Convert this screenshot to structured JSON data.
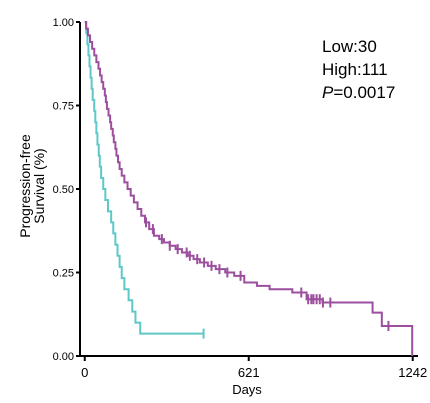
{
  "chart_data": {
    "type": "line",
    "subtype": "kaplan-meier-step",
    "xlabel": "Days",
    "ylabel_line1": "Progression-free",
    "ylabel_line2": "Survival (%)",
    "xlim": [
      -18,
      1262
    ],
    "ylim": [
      0,
      1.0
    ],
    "x_ticks": [
      0,
      621,
      1242
    ],
    "x_tick_labels": [
      "0",
      "621",
      "1242"
    ],
    "y_ticks": [
      0,
      0.25,
      0.5,
      0.75,
      1.0
    ],
    "y_tick_labels": [
      "0.00",
      "0.25",
      "0.50",
      "0.75",
      "1.00"
    ],
    "legend": {
      "line1": "Low:30",
      "line2": "High:111",
      "p_symbol": "P",
      "p_value": "=0.0017",
      "placement": "top-right"
    },
    "colors": {
      "low": "#5ec8c8",
      "high": "#9b4f9e",
      "axis": "#000000"
    },
    "series": [
      {
        "key": "low",
        "steps": [
          [
            0,
            1.0
          ],
          [
            6,
            0.967
          ],
          [
            10,
            0.933
          ],
          [
            14,
            0.9
          ],
          [
            18,
            0.867
          ],
          [
            22,
            0.833
          ],
          [
            26,
            0.8
          ],
          [
            30,
            0.767
          ],
          [
            36,
            0.733
          ],
          [
            40,
            0.7
          ],
          [
            44,
            0.667
          ],
          [
            48,
            0.633
          ],
          [
            53,
            0.6
          ],
          [
            57,
            0.567
          ],
          [
            62,
            0.533
          ],
          [
            70,
            0.5
          ],
          [
            78,
            0.467
          ],
          [
            88,
            0.433
          ],
          [
            100,
            0.4
          ],
          [
            108,
            0.367
          ],
          [
            116,
            0.333
          ],
          [
            124,
            0.3
          ],
          [
            132,
            0.267
          ],
          [
            140,
            0.233
          ],
          [
            150,
            0.2
          ],
          [
            166,
            0.167
          ],
          [
            180,
            0.133
          ],
          [
            192,
            0.1
          ],
          [
            210,
            0.067
          ],
          [
            450,
            0.067
          ]
        ],
        "censor_times": [
          450
        ]
      },
      {
        "key": "high",
        "steps": [
          [
            0,
            1.0
          ],
          [
            5,
            0.98
          ],
          [
            12,
            0.96
          ],
          [
            20,
            0.94
          ],
          [
            28,
            0.92
          ],
          [
            36,
            0.9
          ],
          [
            44,
            0.88
          ],
          [
            52,
            0.86
          ],
          [
            58,
            0.84
          ],
          [
            64,
            0.82
          ],
          [
            70,
            0.8
          ],
          [
            76,
            0.78
          ],
          [
            80,
            0.76
          ],
          [
            84,
            0.74
          ],
          [
            90,
            0.72
          ],
          [
            96,
            0.7
          ],
          [
            100,
            0.68
          ],
          [
            106,
            0.66
          ],
          [
            110,
            0.64
          ],
          [
            116,
            0.62
          ],
          [
            120,
            0.6
          ],
          [
            126,
            0.58
          ],
          [
            132,
            0.56
          ],
          [
            140,
            0.54
          ],
          [
            150,
            0.52
          ],
          [
            162,
            0.5
          ],
          [
            174,
            0.48
          ],
          [
            186,
            0.46
          ],
          [
            200,
            0.44
          ],
          [
            214,
            0.42
          ],
          [
            228,
            0.4
          ],
          [
            244,
            0.38
          ],
          [
            262,
            0.36
          ],
          [
            282,
            0.35
          ],
          [
            300,
            0.34
          ],
          [
            322,
            0.33
          ],
          [
            344,
            0.32
          ],
          [
            368,
            0.31
          ],
          [
            390,
            0.3
          ],
          [
            412,
            0.29
          ],
          [
            436,
            0.28
          ],
          [
            466,
            0.27
          ],
          [
            496,
            0.26
          ],
          [
            532,
            0.25
          ],
          [
            566,
            0.24
          ],
          [
            604,
            0.22
          ],
          [
            652,
            0.21
          ],
          [
            700,
            0.2
          ],
          [
            786,
            0.19
          ],
          [
            840,
            0.17
          ],
          [
            900,
            0.16
          ],
          [
            1090,
            0.13
          ],
          [
            1125,
            0.09
          ],
          [
            1240,
            0.09
          ],
          [
            1240,
            0.0
          ]
        ],
        "censor_times": [
          232,
          258,
          292,
          322,
          352,
          386,
          398,
          426,
          452,
          480,
          510,
          540,
          590,
          820,
          846,
          858,
          866,
          878,
          890,
          902,
          930,
          1150
        ]
      }
    ]
  }
}
